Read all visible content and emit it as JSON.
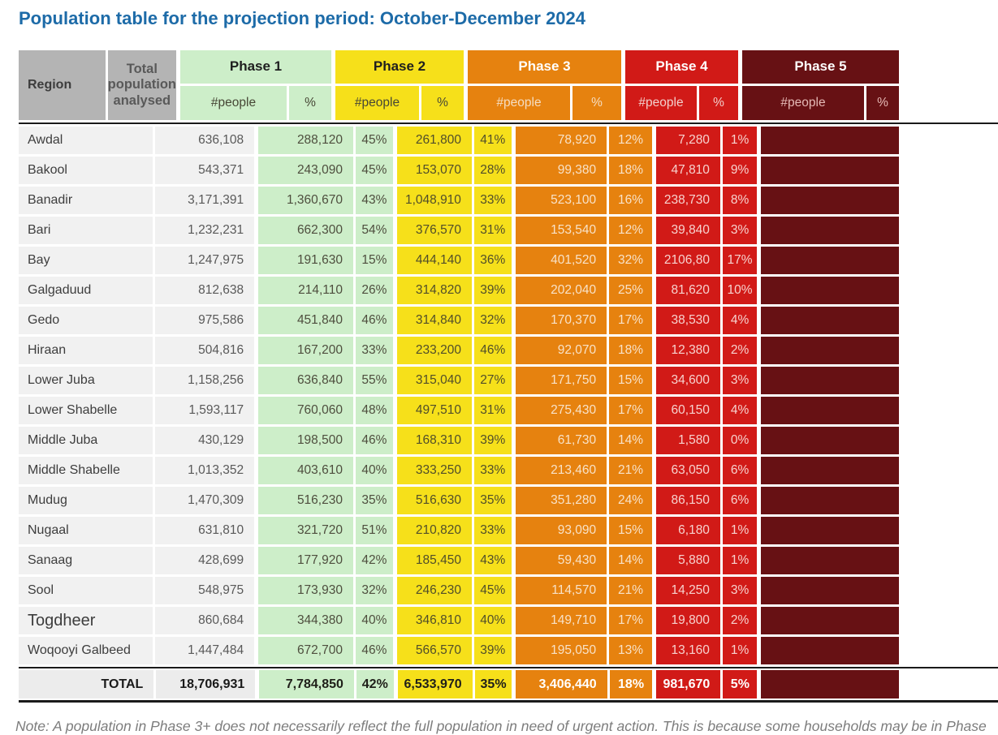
{
  "title": "Population table for the projection period: October-December 2024",
  "note": "Note: A population in Phase 3+ does not necessarily reflect the full population in need of urgent action. This is because some households may be in Phase",
  "colors": {
    "title_blue": "#1d6ba8",
    "header_gray": "#b4b4b4",
    "row_background": "#f1f1f1",
    "phase1_green": "#cdeec9",
    "phase2_yellow": "#f6e01a",
    "phase3_orange": "#e6820f",
    "phase4_red": "#d11a17",
    "phase5_maroon": "#671114"
  },
  "table": {
    "headers": {
      "region": "Region",
      "total_population": "Total\npopulation\nanalysed",
      "phases": [
        "Phase 1",
        "Phase 2",
        "Phase 3",
        "Phase 4",
        "Phase 5"
      ],
      "people_label": "#people",
      "percent_label": "%"
    },
    "rows": [
      {
        "region": "Awdal",
        "total": "636,108",
        "p1n": "288,120",
        "p1p": "45%",
        "p2n": "261,800",
        "p2p": "41%",
        "p3n": "78,920",
        "p3p": "12%",
        "p4n": "7,280",
        "p4p": "1%"
      },
      {
        "region": "Bakool",
        "total": "543,371",
        "p1n": "243,090",
        "p1p": "45%",
        "p2n": "153,070",
        "p2p": "28%",
        "p3n": "99,380",
        "p3p": "18%",
        "p4n": "47,810",
        "p4p": "9%"
      },
      {
        "region": "Banadir",
        "total": "3,171,391",
        "p1n": "1,360,670",
        "p1p": "43%",
        "p2n": "1,048,910",
        "p2p": "33%",
        "p3n": "523,100",
        "p3p": "16%",
        "p4n": "238,730",
        "p4p": "8%"
      },
      {
        "region": "Bari",
        "total": "1,232,231",
        "p1n": "662,300",
        "p1p": "54%",
        "p2n": "376,570",
        "p2p": "31%",
        "p3n": "153,540",
        "p3p": "12%",
        "p4n": "39,840",
        "p4p": "3%"
      },
      {
        "region": "Bay",
        "total": "1,247,975",
        "p1n": "191,630",
        "p1p": "15%",
        "p2n": "444,140",
        "p2p": "36%",
        "p3n": "401,520",
        "p3p": "32%",
        "p4n": "2106,80",
        "p4p": "17%"
      },
      {
        "region": "Galgaduud",
        "total": "812,638",
        "p1n": "214,110",
        "p1p": "26%",
        "p2n": "314,820",
        "p2p": "39%",
        "p3n": "202,040",
        "p3p": "25%",
        "p4n": "81,620",
        "p4p": "10%"
      },
      {
        "region": "Gedo",
        "total": "975,586",
        "p1n": "451,840",
        "p1p": "46%",
        "p2n": "314,840",
        "p2p": "32%",
        "p3n": "170,370",
        "p3p": "17%",
        "p4n": "38,530",
        "p4p": "4%"
      },
      {
        "region": "Hiraan",
        "total": "504,816",
        "p1n": "167,200",
        "p1p": "33%",
        "p2n": "233,200",
        "p2p": "46%",
        "p3n": "92,070",
        "p3p": "18%",
        "p4n": "12,380",
        "p4p": "2%"
      },
      {
        "region": "Lower Juba",
        "total": "1,158,256",
        "p1n": "636,840",
        "p1p": "55%",
        "p2n": "315,040",
        "p2p": "27%",
        "p3n": "171,750",
        "p3p": "15%",
        "p4n": "34,600",
        "p4p": "3%"
      },
      {
        "region": "Lower Shabelle",
        "total": "1,593,117",
        "p1n": "760,060",
        "p1p": "48%",
        "p2n": "497,510",
        "p2p": "31%",
        "p3n": "275,430",
        "p3p": "17%",
        "p4n": "60,150",
        "p4p": "4%"
      },
      {
        "region": "Middle Juba",
        "total": "430,129",
        "p1n": "198,500",
        "p1p": "46%",
        "p2n": "168,310",
        "p2p": "39%",
        "p3n": "61,730",
        "p3p": "14%",
        "p4n": "1,580",
        "p4p": "0%"
      },
      {
        "region": "Middle Shabelle",
        "total": "1,013,352",
        "p1n": "403,610",
        "p1p": "40%",
        "p2n": "333,250",
        "p2p": "33%",
        "p3n": "213,460",
        "p3p": "21%",
        "p4n": "63,050",
        "p4p": "6%"
      },
      {
        "region": "Mudug",
        "total": "1,470,309",
        "p1n": "516,230",
        "p1p": "35%",
        "p2n": "516,630",
        "p2p": "35%",
        "p3n": "351,280",
        "p3p": "24%",
        "p4n": "86,150",
        "p4p": "6%"
      },
      {
        "region": "Nugaal",
        "total": "631,810",
        "p1n": "321,720",
        "p1p": "51%",
        "p2n": "210,820",
        "p2p": "33%",
        "p3n": "93,090",
        "p3p": "15%",
        "p4n": "6,180",
        "p4p": "1%"
      },
      {
        "region": "Sanaag",
        "total": "428,699",
        "p1n": "177,920",
        "p1p": "42%",
        "p2n": "185,450",
        "p2p": "43%",
        "p3n": "59,430",
        "p3p": "14%",
        "p4n": "5,880",
        "p4p": "1%"
      },
      {
        "region": "Sool",
        "total": "548,975",
        "p1n": "173,930",
        "p1p": "32%",
        "p2n": "246,230",
        "p2p": "45%",
        "p3n": "114,570",
        "p3p": "21%",
        "p4n": "14,250",
        "p4p": "3%"
      },
      {
        "region": "Togdheer",
        "large": true,
        "total": "860,684",
        "p1n": "344,380",
        "p1p": "40%",
        "p2n": "346,810",
        "p2p": "40%",
        "p3n": "149,710",
        "p3p": "17%",
        "p4n": "19,800",
        "p4p": "2%"
      },
      {
        "region": "Woqooyi Galbeed",
        "total": "1,447,484",
        "p1n": "672,700",
        "p1p": "46%",
        "p2n": "566,570",
        "p2p": "39%",
        "p3n": "195,050",
        "p3p": "13%",
        "p4n": "13,160",
        "p4p": "1%"
      }
    ],
    "total_row": {
      "label": "TOTAL",
      "total": "18,706,931",
      "p1n": "7,784,850",
      "p1p": "42%",
      "p2n": "6,533,970",
      "p2p": "35%",
      "p3n": "3,406,440",
      "p3p": "18%",
      "p4n": "981,670",
      "p4p": "5%"
    }
  }
}
